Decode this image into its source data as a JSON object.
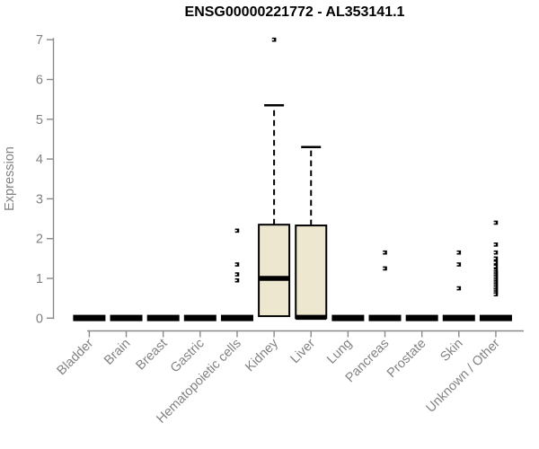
{
  "title": "ENSG00000221772 - AL353141.1",
  "chart_data": {
    "type": "boxplot",
    "title": "ENSG00000221772 - AL353141.1",
    "xlabel": "",
    "ylabel": "Expression",
    "ylim": [
      0,
      7
    ],
    "yticks": [
      0,
      1,
      2,
      3,
      4,
      5,
      6,
      7
    ],
    "grid": false,
    "legend": null,
    "categories": [
      "Bladder",
      "Brain",
      "Breast",
      "Gastric",
      "Hematopoietic cells",
      "Kidney",
      "Liver",
      "Lung",
      "Pancreas",
      "Prostate",
      "Skin",
      "Unknown / Other"
    ],
    "boxes": [
      {
        "category": "Bladder",
        "q1": 0,
        "median": 0,
        "q3": 0,
        "whisker_low": 0,
        "whisker_high": 0,
        "outliers": []
      },
      {
        "category": "Brain",
        "q1": 0,
        "median": 0,
        "q3": 0,
        "whisker_low": 0,
        "whisker_high": 0,
        "outliers": []
      },
      {
        "category": "Breast",
        "q1": 0,
        "median": 0,
        "q3": 0,
        "whisker_low": 0,
        "whisker_high": 0,
        "outliers": []
      },
      {
        "category": "Gastric",
        "q1": 0,
        "median": 0,
        "q3": 0,
        "whisker_low": 0,
        "whisker_high": 0,
        "outliers": []
      },
      {
        "category": "Hematopoietic cells",
        "q1": 0,
        "median": 0,
        "q3": 0,
        "whisker_low": 0,
        "whisker_high": 0,
        "outliers": [
          2.2,
          1.35,
          1.1,
          0.95
        ]
      },
      {
        "category": "Kidney",
        "q1": 0.05,
        "median": 1.0,
        "q3": 2.35,
        "whisker_low": 0.05,
        "whisker_high": 5.35,
        "outliers": [
          7.0
        ]
      },
      {
        "category": "Liver",
        "q1": 0,
        "median": 0.02,
        "q3": 2.33,
        "whisker_low": 0,
        "whisker_high": 4.3,
        "outliers": []
      },
      {
        "category": "Lung",
        "q1": 0,
        "median": 0,
        "q3": 0,
        "whisker_low": 0,
        "whisker_high": 0,
        "outliers": []
      },
      {
        "category": "Pancreas",
        "q1": 0,
        "median": 0,
        "q3": 0,
        "whisker_low": 0,
        "whisker_high": 0,
        "outliers": [
          1.65,
          1.25
        ]
      },
      {
        "category": "Prostate",
        "q1": 0,
        "median": 0,
        "q3": 0,
        "whisker_low": 0,
        "whisker_high": 0,
        "outliers": []
      },
      {
        "category": "Skin",
        "q1": 0,
        "median": 0,
        "q3": 0,
        "whisker_low": 0,
        "whisker_high": 0,
        "outliers": [
          1.65,
          1.35,
          0.75
        ]
      },
      {
        "category": "Unknown / Other",
        "q1": 0,
        "median": 0,
        "q3": 0,
        "whisker_low": 0,
        "whisker_high": 0,
        "outliers": [
          2.4,
          1.85,
          1.65,
          1.5,
          1.4,
          1.3,
          1.2,
          1.15,
          1.1,
          1.05,
          1.0,
          0.95,
          0.9,
          0.85,
          0.8,
          0.75,
          0.7,
          0.65,
          0.6
        ]
      }
    ],
    "colors": {
      "box_fill": "#ede7d0",
      "box_border": "#000000",
      "median": "#000000",
      "outlier": "#000000",
      "axis": "#8a8a8a",
      "tick_text": "#828282",
      "title_text": "#000000",
      "background": "#ffffff"
    }
  }
}
